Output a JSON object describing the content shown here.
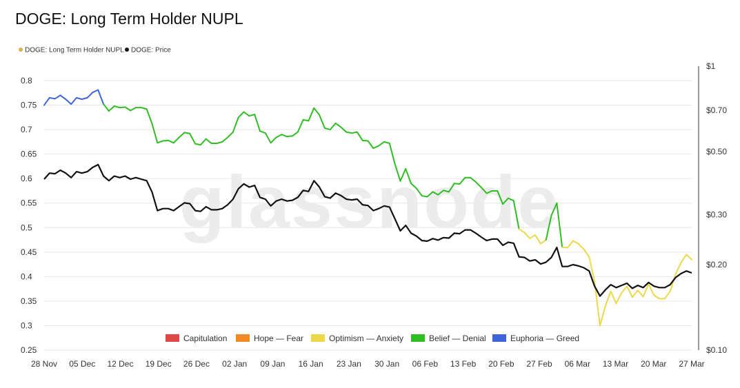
{
  "chart_data": {
    "type": "line",
    "title": "DOGE: Long Term Holder NUPL",
    "watermark": "glassnode",
    "legend": [
      {
        "name": "DOGE: Long Term Holder NUPL",
        "color": "#d8b24a"
      },
      {
        "name": "DOGE: Price",
        "color": "#111111"
      }
    ],
    "zone_legend": [
      {
        "name": "Capitulation",
        "color": "#e04848"
      },
      {
        "name": "Hope — Fear",
        "color": "#f08a24"
      },
      {
        "name": "Optimism — Anxiety",
        "color": "#ecd94a"
      },
      {
        "name": "Belief — Denial",
        "color": "#2fbd22"
      },
      {
        "name": "Euphoria — Greed",
        "color": "#3f63d8"
      }
    ],
    "zone_thresholds": {
      "optimism_anxiety_max": 0.5,
      "belief_denial_max": 0.75
    },
    "x_ticks": [
      "28 Nov",
      "05 Dec",
      "12 Dec",
      "19 Dec",
      "26 Dec",
      "02 Jan",
      "09 Jan",
      "16 Jan",
      "23 Jan",
      "30 Jan",
      "06 Feb",
      "13 Feb",
      "20 Feb",
      "27 Feb",
      "06 Mar",
      "13 Mar",
      "20 Mar",
      "27 Mar"
    ],
    "y_left": {
      "ticks": [
        "0.8",
        "0.75",
        "0.7",
        "0.65",
        "0.6",
        "0.55",
        "0.5",
        "0.45",
        "0.4",
        "0.35",
        "0.3",
        "0.25"
      ],
      "range": [
        0.25,
        0.8
      ]
    },
    "y_right": {
      "scale": "log",
      "ticks": [
        "$1",
        "$0.70",
        "$0.50",
        "$0.30",
        "$0.20",
        "$0.10"
      ],
      "values": [
        1,
        0.7,
        0.5,
        0.3,
        0.2,
        0.1
      ],
      "range": [
        0.1,
        1
      ]
    },
    "series": [
      {
        "name": "DOGE: Long Term Holder NUPL",
        "values": [
          0.75,
          0.765,
          0.763,
          0.77,
          0.762,
          0.752,
          0.765,
          0.762,
          0.765,
          0.776,
          0.781,
          0.752,
          0.738,
          0.748,
          0.745,
          0.746,
          0.739,
          0.745,
          0.745,
          0.742,
          0.712,
          0.673,
          0.677,
          0.678,
          0.673,
          0.684,
          0.694,
          0.692,
          0.671,
          0.669,
          0.681,
          0.672,
          0.672,
          0.675,
          0.684,
          0.695,
          0.725,
          0.736,
          0.728,
          0.731,
          0.697,
          0.693,
          0.673,
          0.684,
          0.69,
          0.686,
          0.687,
          0.695,
          0.72,
          0.718,
          0.744,
          0.73,
          0.703,
          0.7,
          0.713,
          0.705,
          0.695,
          0.693,
          0.695,
          0.678,
          0.677,
          0.662,
          0.667,
          0.675,
          0.672,
          0.63,
          0.595,
          0.62,
          0.59,
          0.58,
          0.565,
          0.563,
          0.573,
          0.567,
          0.576,
          0.573,
          0.59,
          0.589,
          0.602,
          0.602,
          0.593,
          0.582,
          0.57,
          0.575,
          0.575,
          0.548,
          0.56,
          0.555,
          0.497,
          0.49,
          0.478,
          0.485,
          0.467,
          0.475,
          0.525,
          0.55,
          0.46,
          0.459,
          0.473,
          0.467,
          0.456,
          0.44,
          0.39,
          0.3,
          0.34,
          0.37,
          0.345,
          0.367,
          0.38,
          0.358,
          0.372,
          0.359,
          0.385,
          0.362,
          0.355,
          0.355,
          0.37,
          0.405,
          0.428,
          0.445,
          0.435
        ]
      },
      {
        "name": "DOGE: Price",
        "values": [
          0.4,
          0.42,
          0.418,
          0.43,
          0.42,
          0.405,
          0.425,
          0.42,
          0.425,
          0.44,
          0.45,
          0.41,
          0.395,
          0.41,
          0.405,
          0.41,
          0.4,
          0.405,
          0.4,
          0.395,
          0.36,
          0.31,
          0.315,
          0.315,
          0.31,
          0.32,
          0.33,
          0.328,
          0.31,
          0.308,
          0.32,
          0.312,
          0.312,
          0.315,
          0.325,
          0.34,
          0.37,
          0.385,
          0.375,
          0.38,
          0.345,
          0.34,
          0.322,
          0.335,
          0.34,
          0.335,
          0.337,
          0.345,
          0.365,
          0.362,
          0.395,
          0.375,
          0.347,
          0.343,
          0.357,
          0.35,
          0.34,
          0.338,
          0.34,
          0.325,
          0.323,
          0.31,
          0.315,
          0.322,
          0.319,
          0.29,
          0.263,
          0.275,
          0.258,
          0.252,
          0.243,
          0.242,
          0.247,
          0.244,
          0.249,
          0.248,
          0.258,
          0.257,
          0.265,
          0.265,
          0.258,
          0.25,
          0.243,
          0.246,
          0.246,
          0.234,
          0.24,
          0.238,
          0.213,
          0.212,
          0.206,
          0.208,
          0.201,
          0.204,
          0.212,
          0.23,
          0.197,
          0.197,
          0.2,
          0.198,
          0.195,
          0.19,
          0.168,
          0.155,
          0.163,
          0.17,
          0.166,
          0.169,
          0.172,
          0.165,
          0.169,
          0.166,
          0.173,
          0.168,
          0.166,
          0.166,
          0.17,
          0.18,
          0.186,
          0.19,
          0.187
        ]
      }
    ]
  }
}
